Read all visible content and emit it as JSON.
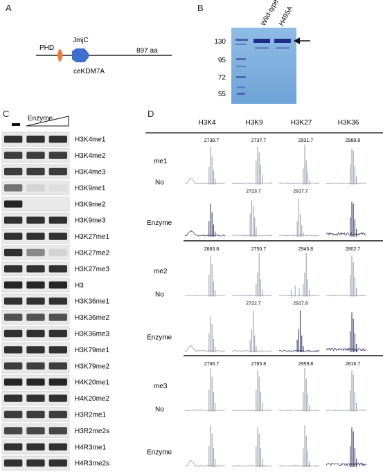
{
  "panels": {
    "A": {
      "letter": "A",
      "domain_phd": "PHD",
      "domain_jmjc": "JmjC",
      "length": "897 aa",
      "protein": "ceKDM7A",
      "colors": {
        "phd": "#f07a3a",
        "jmjc": "#3d6fd0"
      }
    },
    "B": {
      "letter": "B",
      "lanes": [
        "Wild-type",
        "H495A"
      ],
      "markers": [
        "130",
        "95",
        "72",
        "55"
      ],
      "gel_color": "#7fb0dd"
    },
    "C": {
      "letter": "C",
      "enzyme_label": "Enzyme",
      "antibodies": [
        "H3K4me1",
        "H3K4me2",
        "H3K4me3",
        "H3K9me1",
        "H3K9me2",
        "H3K9me3",
        "H3K27me1",
        "H3K27me2",
        "H3K27me3",
        "H3",
        "H3K36me1",
        "H3K36me2",
        "H3K36me3",
        "H3K79me1",
        "H3K79me2",
        "H4K20me1",
        "H4K20me2",
        "H3R2me1",
        "H3R2me2s",
        "H4R3me1",
        "H4R3me2s"
      ],
      "lane_intensity": [
        [
          0.85,
          0.85,
          0.85
        ],
        [
          0.8,
          0.8,
          0.8
        ],
        [
          0.8,
          0.8,
          0.8
        ],
        [
          0.55,
          0.1,
          0.05
        ],
        [
          0.9,
          0.0,
          0.0
        ],
        [
          0.85,
          0.85,
          0.85
        ],
        [
          0.85,
          0.85,
          0.85
        ],
        [
          0.85,
          0.45,
          0.1
        ],
        [
          0.85,
          0.85,
          0.85
        ],
        [
          0.9,
          0.9,
          0.9
        ],
        [
          0.85,
          0.85,
          0.85
        ],
        [
          0.7,
          0.7,
          0.7
        ],
        [
          0.85,
          0.85,
          0.85
        ],
        [
          0.85,
          0.85,
          0.85
        ],
        [
          0.8,
          0.8,
          0.8
        ],
        [
          0.9,
          0.9,
          0.9
        ],
        [
          0.85,
          0.85,
          0.85
        ],
        [
          0.8,
          0.8,
          0.8
        ],
        [
          0.75,
          0.75,
          0.75
        ],
        [
          0.85,
          0.85,
          0.85
        ],
        [
          0.85,
          0.85,
          0.85
        ]
      ]
    },
    "D": {
      "letter": "D",
      "columns": [
        "H3K4",
        "H3K9",
        "H3K27",
        "H3K36"
      ],
      "groups": [
        {
          "label": "me1",
          "row_labels": [
            "No",
            "Enzyme"
          ],
          "masses_top": [
            "2738.7",
            "2737.7",
            "2931.7",
            "2988.8"
          ],
          "masses_bottom": [
            "",
            "2723.7",
            "2917.7",
            ""
          ]
        },
        {
          "label": "me2",
          "row_labels": [
            "No",
            "Enzyme"
          ],
          "masses_top": [
            "2863.8",
            "2750.7",
            "2945.8",
            "2802.7"
          ],
          "masses_bottom": [
            "",
            "2722.7",
            "2917.8",
            ""
          ]
        },
        {
          "label": "me3",
          "row_labels": [
            "No",
            "Enzyme"
          ],
          "masses_top": [
            "2766.7",
            "2765.8",
            "2959.8",
            "2816.7"
          ],
          "masses_bottom": [
            "",
            "",
            "",
            ""
          ]
        }
      ]
    }
  }
}
